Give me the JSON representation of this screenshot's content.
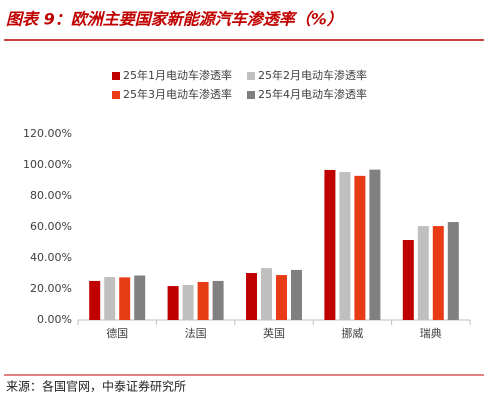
{
  "chart_data": {
    "type": "bar",
    "title": "图表 9：欧洲主要国家新能源汽车渗透率（%）",
    "source": "来源：各国官网，中泰证券研究所",
    "categories": [
      "德国",
      "法国",
      "英国",
      "挪威",
      "瑞典"
    ],
    "series": [
      {
        "name": "25年1月电动车渗透率",
        "color": "#c00000",
        "values": [
          25.2,
          21.9,
          30.3,
          96.8,
          51.6
        ]
      },
      {
        "name": "25年2月电动车渗透率",
        "color": "#bfbfbf",
        "values": [
          27.7,
          22.6,
          33.5,
          95.5,
          60.6
        ]
      },
      {
        "name": "25年3月电动车渗透率",
        "color": "#e83c17",
        "values": [
          27.5,
          24.5,
          29.0,
          93.0,
          60.6
        ]
      },
      {
        "name": "25年4月电动车渗透率",
        "color": "#808080",
        "values": [
          28.7,
          25.2,
          32.3,
          97.0,
          63.2
        ]
      }
    ],
    "ylim": [
      0,
      120
    ],
    "yticks": [
      {
        "value": 0,
        "label": "0.00%"
      },
      {
        "value": 20,
        "label": "20.00%"
      },
      {
        "value": 40,
        "label": "40.00%"
      },
      {
        "value": 60,
        "label": "60.00%"
      },
      {
        "value": 80,
        "label": "80.00%"
      },
      {
        "value": 100,
        "label": "100.00%"
      },
      {
        "value": 120,
        "label": "120.00%"
      }
    ],
    "grid": false
  }
}
